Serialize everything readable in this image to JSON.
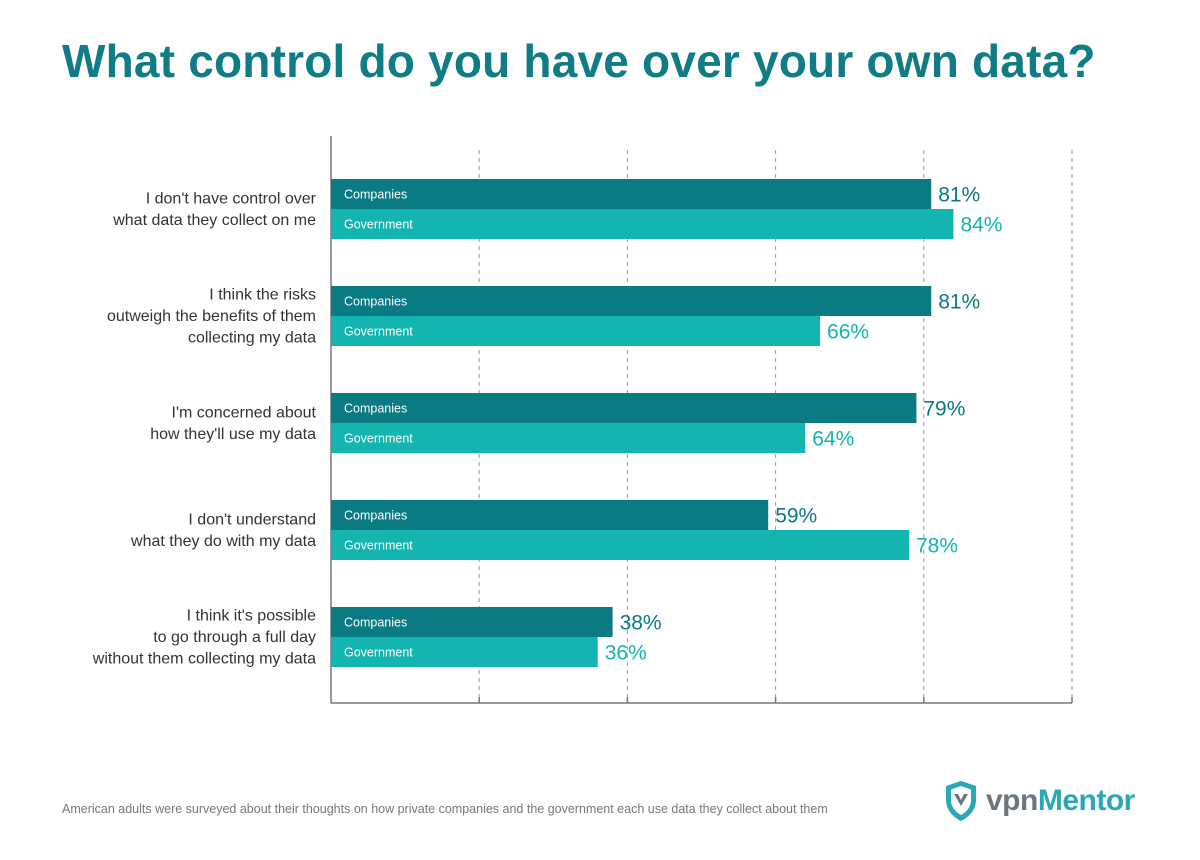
{
  "chart_data": {
    "type": "bar",
    "orientation": "horizontal",
    "title": "What control do you have over your own data?",
    "categories": [
      [
        "I don't have control over",
        "what data they collect on me"
      ],
      [
        "I think the risks",
        "outweigh the benefits of them",
        "collecting my data"
      ],
      [
        "I'm concerned about",
        "how they'll use my data"
      ],
      [
        "I don't understand",
        "what they do with my data"
      ],
      [
        "I think it's possible",
        "to go through a full day",
        "without them collecting my data"
      ]
    ],
    "series": [
      {
        "name": "Companies",
        "color": "#0a7a83",
        "values": [
          81,
          81,
          79,
          59,
          38
        ]
      },
      {
        "name": "Government",
        "color": "#14b5b0",
        "values": [
          84,
          66,
          64,
          78,
          36
        ]
      }
    ],
    "value_suffix": "%",
    "xlim": [
      0,
      100
    ],
    "gridlines": [
      20,
      40,
      60,
      80,
      100
    ],
    "grid": "dashed vertical",
    "xlabel": "",
    "ylabel": ""
  },
  "footnote": "American adults were surveyed about their thoughts on how private companies and the government each use data they collect about them",
  "logo": {
    "prefix": "vpn",
    "suffix": "Mentor",
    "icon": "shield-icon"
  }
}
